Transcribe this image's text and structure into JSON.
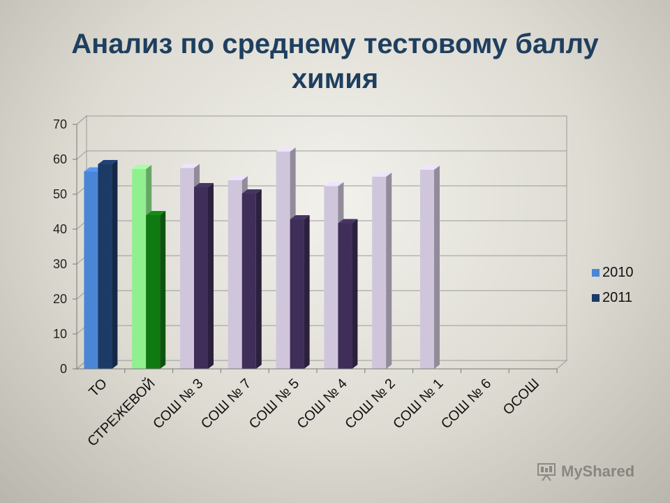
{
  "title_line1": "Анализ по среднему тестовому баллу",
  "title_line2": "химия",
  "watermark": "MyShared",
  "chart_data": {
    "type": "bar",
    "title": "Анализ по среднему тестовому баллу химия",
    "categories": [
      "ТО",
      "СТРЕЖЕВОЙ",
      "СОШ № 3",
      "СОШ № 7",
      "СОШ № 5",
      "СОШ № 4",
      "СОШ № 2",
      "СОШ № 1",
      "СОШ № 6",
      "ОСОШ"
    ],
    "series": [
      {
        "name": "2010",
        "values": [
          56.5,
          57.2,
          57.5,
          54.0,
          62.2,
          52.3,
          55.0,
          57.0,
          null,
          null
        ]
      },
      {
        "name": "2011",
        "values": [
          58.6,
          44.0,
          52.0,
          50.2,
          42.8,
          41.7,
          null,
          null,
          null,
          null
        ]
      }
    ],
    "ylim": [
      0,
      70
    ],
    "yticks": [
      0,
      10,
      20,
      30,
      40,
      50,
      60,
      70
    ],
    "grid": true,
    "legend_position": "right",
    "colors": {
      "legend_2010": "#4a86d6",
      "legend_2011": "#1b3a66"
    },
    "bar_colors": [
      [
        "#4a86d6",
        "#1b3a66"
      ],
      [
        "#90f090",
        "#0f7a12"
      ],
      [
        "#cfc6dc",
        "#3f2e58"
      ],
      [
        "#cfc6dc",
        "#3f2e58"
      ],
      [
        "#cfc6dc",
        "#3f2e58"
      ],
      [
        "#cfc6dc",
        "#3f2e58"
      ],
      [
        "#cfc6dc",
        "#3f2e58"
      ],
      [
        "#cfc6dc",
        "#3f2e58"
      ],
      [
        "#cfc6dc",
        "#3f2e58"
      ],
      [
        "#cfc6dc",
        "#3f2e58"
      ]
    ]
  }
}
